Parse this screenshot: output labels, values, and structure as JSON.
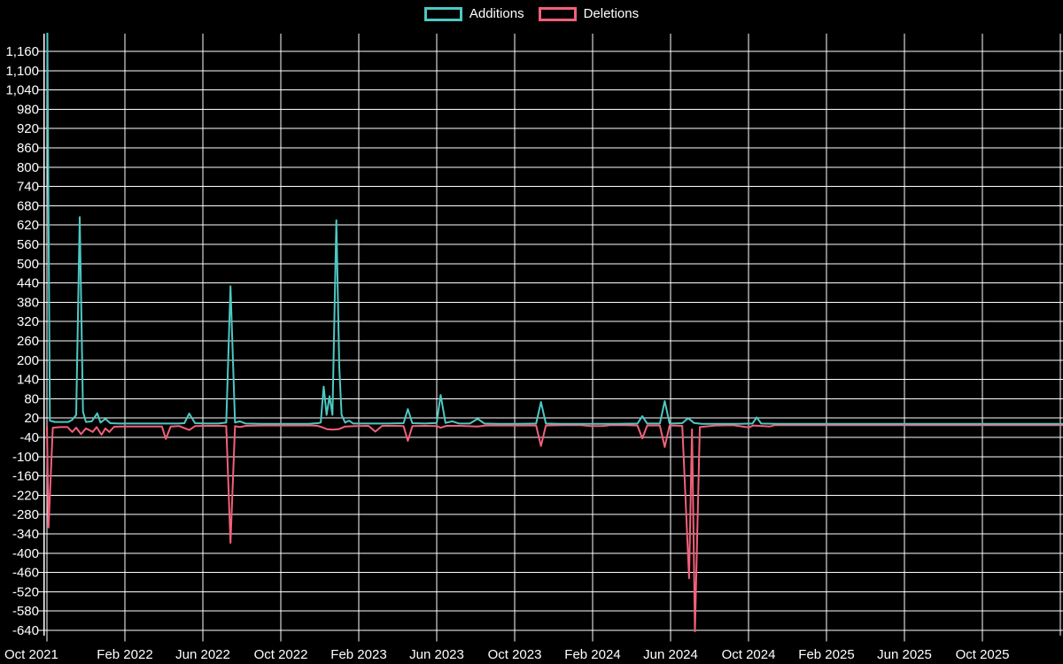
{
  "legend": {
    "additions_label": "Additions",
    "deletions_label": "Deletions"
  },
  "colors": {
    "background": "#000000",
    "grid": "#ffffff",
    "axis": "#ffffff",
    "text": "#ffffff",
    "additions": "#4dc8c3",
    "deletions": "#f2607a"
  },
  "chart_data": {
    "type": "line",
    "title": "",
    "xlabel": "",
    "ylabel": "",
    "grid": true,
    "legend_position": "top-center",
    "x_axis": {
      "unit": "months since Oct 2021",
      "tick_positions": [
        0,
        4,
        8,
        12,
        16,
        20,
        24,
        28,
        32,
        36,
        40,
        44,
        48
      ],
      "tick_labels": [
        "Oct 2021",
        "Feb 2022",
        "Jun 2022",
        "Oct 2022",
        "Feb 2023",
        "Jun 2023",
        "Oct 2023",
        "Feb 2024",
        "Jun 2024",
        "Oct 2024",
        "Feb 2025",
        "Jun 2025",
        "Oct 2025"
      ],
      "extra_gridline_positions": [
        52
      ]
    },
    "y_axis": {
      "tick_values": [
        1160,
        1100,
        1040,
        980,
        920,
        860,
        800,
        740,
        680,
        620,
        560,
        500,
        440,
        380,
        320,
        260,
        200,
        140,
        80,
        20,
        -40,
        -100,
        -160,
        -220,
        -280,
        -340,
        -400,
        -460,
        -520,
        -580,
        -640
      ],
      "tick_labels": [
        "1,160",
        "1,100",
        "1,040",
        "980",
        "920",
        "860",
        "800",
        "740",
        "680",
        "620",
        "560",
        "500",
        "440",
        "380",
        "320",
        "260",
        "200",
        "140",
        "80",
        "20",
        "-40",
        "-100",
        "-160",
        "-220",
        "-280",
        "-340",
        "-400",
        "-460",
        "-520",
        "-580",
        "-640"
      ],
      "visible_range": [
        -656,
        1215
      ]
    },
    "series": [
      {
        "name": "Deletions",
        "color": "#f2607a",
        "points": [
          [
            0,
            -5
          ],
          [
            0.08,
            -320
          ],
          [
            0.3,
            -10
          ],
          [
            0.7,
            -8
          ],
          [
            1.05,
            -8
          ],
          [
            1.3,
            -23
          ],
          [
            1.5,
            -10
          ],
          [
            1.75,
            -30
          ],
          [
            2,
            -12
          ],
          [
            2.35,
            -23
          ],
          [
            2.55,
            -8
          ],
          [
            2.8,
            -32
          ],
          [
            3,
            -12
          ],
          [
            3.2,
            -23
          ],
          [
            3.45,
            -7
          ],
          [
            3.9,
            -6
          ],
          [
            4.5,
            -6
          ],
          [
            5.1,
            -6
          ],
          [
            5.7,
            -6
          ],
          [
            5.9,
            -6
          ],
          [
            6.1,
            -45
          ],
          [
            6.35,
            -6
          ],
          [
            6.8,
            -5
          ],
          [
            7.3,
            -17
          ],
          [
            7.6,
            -5
          ],
          [
            8.3,
            -4
          ],
          [
            8.9,
            -4
          ],
          [
            9.2,
            -5
          ],
          [
            9.42,
            -368
          ],
          [
            9.65,
            -5
          ],
          [
            9.9,
            -8
          ],
          [
            10.2,
            -4
          ],
          [
            11,
            -3
          ],
          [
            11.9,
            -3
          ],
          [
            12.8,
            -3
          ],
          [
            13.6,
            -3
          ],
          [
            13.9,
            -4
          ],
          [
            14.1,
            -8
          ],
          [
            14.4,
            -15
          ],
          [
            14.7,
            -16
          ],
          [
            15,
            -14
          ],
          [
            15.3,
            -6
          ],
          [
            15.9,
            -5
          ],
          [
            16.5,
            -4
          ],
          [
            16.85,
            -22
          ],
          [
            17.2,
            -4
          ],
          [
            17.9,
            -4
          ],
          [
            18.3,
            -5
          ],
          [
            18.52,
            -51
          ],
          [
            18.75,
            -5
          ],
          [
            19.4,
            -4
          ],
          [
            20,
            -5
          ],
          [
            20.2,
            -10
          ],
          [
            20.5,
            -4
          ],
          [
            21.2,
            -4
          ],
          [
            22.1,
            -6
          ],
          [
            22.5,
            -3
          ],
          [
            23.4,
            -3
          ],
          [
            24.3,
            -3
          ],
          [
            25.1,
            -3
          ],
          [
            25.35,
            -67
          ],
          [
            25.6,
            -3
          ],
          [
            26.5,
            -2
          ],
          [
            27.4,
            -2
          ],
          [
            27.9,
            -5
          ],
          [
            28.5,
            -5
          ],
          [
            28.9,
            -2
          ],
          [
            29.7,
            -2
          ],
          [
            30.3,
            -3
          ],
          [
            30.55,
            -43
          ],
          [
            30.8,
            -3
          ],
          [
            31.45,
            -3
          ],
          [
            31.7,
            -70
          ],
          [
            31.95,
            -3
          ],
          [
            32.6,
            -4
          ],
          [
            32.95,
            -478
          ],
          [
            33.1,
            -15
          ],
          [
            33.25,
            -643
          ],
          [
            33.5,
            -8
          ],
          [
            34.3,
            -3
          ],
          [
            35.2,
            -2
          ],
          [
            36,
            -9
          ],
          [
            36.25,
            -3
          ],
          [
            37.1,
            -6
          ],
          [
            37.35,
            -2
          ],
          [
            38.5,
            -2
          ],
          [
            40,
            -2
          ],
          [
            42,
            -2
          ],
          [
            44,
            -2
          ],
          [
            46,
            -2
          ],
          [
            48,
            -2
          ],
          [
            50,
            -2
          ],
          [
            52.2,
            -2
          ]
        ]
      },
      {
        "name": "Additions",
        "color": "#4dc8c3",
        "note": "first point exceeds top of plot (> 1210, clipped)",
        "points": [
          [
            0,
            1400
          ],
          [
            0.15,
            12
          ],
          [
            0.4,
            8
          ],
          [
            0.8,
            8
          ],
          [
            1.1,
            8
          ],
          [
            1.3,
            15
          ],
          [
            1.5,
            30
          ],
          [
            1.68,
            645
          ],
          [
            1.85,
            40
          ],
          [
            2,
            8
          ],
          [
            2.3,
            10
          ],
          [
            2.58,
            35
          ],
          [
            2.75,
            6
          ],
          [
            3,
            18
          ],
          [
            3.25,
            4
          ],
          [
            3.7,
            3
          ],
          [
            4.3,
            3
          ],
          [
            5,
            3
          ],
          [
            5.7,
            3
          ],
          [
            6.1,
            3
          ],
          [
            6.7,
            3
          ],
          [
            7.05,
            4
          ],
          [
            7.3,
            34
          ],
          [
            7.6,
            4
          ],
          [
            8.2,
            3
          ],
          [
            8.8,
            3
          ],
          [
            9.2,
            6
          ],
          [
            9.42,
            430
          ],
          [
            9.65,
            6
          ],
          [
            9.9,
            10
          ],
          [
            10.2,
            3
          ],
          [
            11,
            2
          ],
          [
            11.8,
            2
          ],
          [
            12.6,
            2
          ],
          [
            13.4,
            2
          ],
          [
            13.9,
            4
          ],
          [
            14.05,
            6
          ],
          [
            14.2,
            118
          ],
          [
            14.35,
            30
          ],
          [
            14.5,
            88
          ],
          [
            14.65,
            30
          ],
          [
            14.85,
            635
          ],
          [
            15,
            180
          ],
          [
            15.12,
            30
          ],
          [
            15.3,
            6
          ],
          [
            15.5,
            12
          ],
          [
            15.72,
            3
          ],
          [
            16.3,
            3
          ],
          [
            16.85,
            3
          ],
          [
            17.5,
            3
          ],
          [
            18.3,
            4
          ],
          [
            18.52,
            48
          ],
          [
            18.75,
            4
          ],
          [
            19.4,
            3
          ],
          [
            20,
            5
          ],
          [
            20.2,
            92
          ],
          [
            20.45,
            5
          ],
          [
            20.8,
            10
          ],
          [
            21.15,
            3
          ],
          [
            21.7,
            3
          ],
          [
            22.1,
            18
          ],
          [
            22.45,
            3
          ],
          [
            23.2,
            2
          ],
          [
            24.1,
            2
          ],
          [
            25.1,
            3
          ],
          [
            25.35,
            70
          ],
          [
            25.6,
            3
          ],
          [
            26.4,
            2
          ],
          [
            27.3,
            2
          ],
          [
            28.2,
            2
          ],
          [
            29.2,
            2
          ],
          [
            30.3,
            3
          ],
          [
            30.55,
            26
          ],
          [
            30.8,
            3
          ],
          [
            31.45,
            3
          ],
          [
            31.7,
            73
          ],
          [
            31.95,
            3
          ],
          [
            32.6,
            4
          ],
          [
            32.9,
            20
          ],
          [
            33.2,
            5
          ],
          [
            33.6,
            2
          ],
          [
            34.5,
            2
          ],
          [
            35.5,
            2
          ],
          [
            36.2,
            3
          ],
          [
            36.42,
            22
          ],
          [
            36.65,
            3
          ],
          [
            37.5,
            2
          ],
          [
            39,
            2
          ],
          [
            41,
            2
          ],
          [
            43,
            2
          ],
          [
            45,
            2
          ],
          [
            47,
            2
          ],
          [
            49,
            2
          ],
          [
            51,
            2
          ],
          [
            52.2,
            2
          ]
        ]
      }
    ]
  }
}
